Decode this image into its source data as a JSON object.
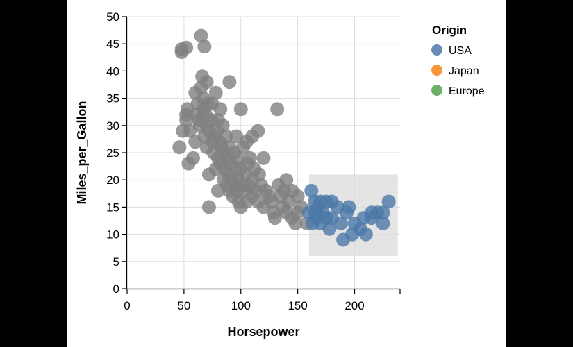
{
  "chart_data": {
    "type": "scatter",
    "xlabel": "Horsepower",
    "ylabel": "Miles_per_Gallon",
    "xlim": [
      0,
      240
    ],
    "ylim": [
      0,
      50
    ],
    "x_ticks": [
      0,
      50,
      100,
      150,
      200
    ],
    "y_ticks": [
      0,
      5,
      10,
      15,
      20,
      25,
      30,
      35,
      40,
      45,
      50
    ],
    "grid": true,
    "legend": {
      "title": "Origin",
      "placement": "top-right",
      "entries": [
        {
          "label": "USA",
          "color": "#4c78a8"
        },
        {
          "label": "Japan",
          "color": "#f58518"
        },
        {
          "label": "Europe",
          "color": "#54a24b"
        }
      ]
    },
    "selection_brush": {
      "x": [
        160,
        238
      ],
      "y": [
        6,
        21
      ]
    },
    "unselected_color": "#808080",
    "selected_color": "#4c78a8",
    "points": [
      [
        46,
        26
      ],
      [
        48,
        43.5
      ],
      [
        48,
        44
      ],
      [
        52,
        44.3
      ],
      [
        49,
        29
      ],
      [
        52,
        31
      ],
      [
        52,
        32
      ],
      [
        53,
        33
      ],
      [
        54,
        23
      ],
      [
        55,
        29
      ],
      [
        58,
        24
      ],
      [
        60,
        36
      ],
      [
        60,
        27
      ],
      [
        61,
        32
      ],
      [
        62,
        34
      ],
      [
        63,
        31
      ],
      [
        64,
        30
      ],
      [
        65,
        46.5
      ],
      [
        65,
        37
      ],
      [
        66,
        39
      ],
      [
        67,
        35
      ],
      [
        67,
        33
      ],
      [
        68,
        28
      ],
      [
        68,
        44.5
      ],
      [
        69,
        32
      ],
      [
        70,
        30
      ],
      [
        70,
        38
      ],
      [
        70,
        26
      ],
      [
        71,
        34
      ],
      [
        72,
        29
      ],
      [
        72,
        21
      ],
      [
        72,
        15
      ],
      [
        74,
        31
      ],
      [
        75,
        27
      ],
      [
        75,
        34
      ],
      [
        76,
        25
      ],
      [
        77,
        28
      ],
      [
        78,
        36
      ],
      [
        78,
        22
      ],
      [
        79,
        29
      ],
      [
        80,
        31
      ],
      [
        80,
        24
      ],
      [
        80,
        18
      ],
      [
        81,
        27
      ],
      [
        82,
        33
      ],
      [
        82,
        23
      ],
      [
        83,
        26
      ],
      [
        84,
        30
      ],
      [
        85,
        20
      ],
      [
        85,
        25
      ],
      [
        86,
        22
      ],
      [
        87,
        28
      ],
      [
        88,
        19
      ],
      [
        88,
        24
      ],
      [
        89,
        21
      ],
      [
        90,
        26
      ],
      [
        90,
        18
      ],
      [
        90,
        38
      ],
      [
        91,
        23
      ],
      [
        92,
        20
      ],
      [
        93,
        17
      ],
      [
        94,
        25
      ],
      [
        95,
        22
      ],
      [
        95,
        19
      ],
      [
        96,
        28
      ],
      [
        97,
        18
      ],
      [
        97,
        24
      ],
      [
        98,
        16
      ],
      [
        98,
        20
      ],
      [
        100,
        15
      ],
      [
        100,
        22
      ],
      [
        100,
        33
      ],
      [
        101,
        19
      ],
      [
        102,
        26
      ],
      [
        103,
        18
      ],
      [
        104,
        21
      ],
      [
        105,
        27
      ],
      [
        105,
        16
      ],
      [
        106,
        23
      ],
      [
        107,
        19
      ],
      [
        108,
        24
      ],
      [
        110,
        17
      ],
      [
        110,
        20
      ],
      [
        110,
        28
      ],
      [
        112,
        22
      ],
      [
        113,
        18
      ],
      [
        115,
        16
      ],
      [
        115,
        29
      ],
      [
        116,
        21
      ],
      [
        118,
        19
      ],
      [
        120,
        24
      ],
      [
        120,
        15
      ],
      [
        122,
        18
      ],
      [
        125,
        17
      ],
      [
        127,
        16
      ],
      [
        129,
        14
      ],
      [
        130,
        13
      ],
      [
        132,
        33
      ],
      [
        133,
        19
      ],
      [
        135,
        17
      ],
      [
        137,
        15
      ],
      [
        138,
        18
      ],
      [
        140,
        20
      ],
      [
        140,
        14
      ],
      [
        142,
        16
      ],
      [
        145,
        13
      ],
      [
        145,
        18
      ],
      [
        148,
        12
      ],
      [
        150,
        14
      ],
      [
        150,
        17
      ],
      [
        153,
        15
      ],
      [
        158,
        12
      ],
      [
        160,
        14
      ],
      [
        162,
        18
      ],
      [
        163,
        12
      ],
      [
        165,
        16
      ],
      [
        165,
        14
      ],
      [
        167,
        13
      ],
      [
        168,
        15
      ],
      [
        170,
        16
      ],
      [
        170,
        12
      ],
      [
        172,
        14
      ],
      [
        175,
        13
      ],
      [
        175,
        16
      ],
      [
        178,
        11
      ],
      [
        180,
        16
      ],
      [
        180,
        13
      ],
      [
        185,
        15
      ],
      [
        188,
        12
      ],
      [
        190,
        9
      ],
      [
        193,
        14
      ],
      [
        195,
        15
      ],
      [
        198,
        10
      ],
      [
        200,
        12
      ],
      [
        205,
        11
      ],
      [
        208,
        13
      ],
      [
        210,
        10
      ],
      [
        215,
        13
      ],
      [
        215,
        14
      ],
      [
        220,
        14
      ],
      [
        225,
        12
      ],
      [
        225,
        14
      ],
      [
        230,
        16
      ]
    ]
  }
}
